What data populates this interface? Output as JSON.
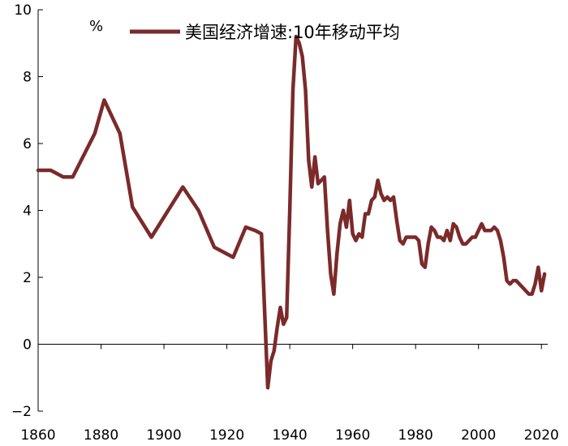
{
  "chart_data": {
    "type": "line",
    "title": "",
    "xlabel": "",
    "ylabel": "%",
    "xlim": [
      1860,
      2022
    ],
    "ylim": [
      -2,
      10
    ],
    "x_ticks": [
      1860,
      1880,
      1900,
      1920,
      1940,
      1960,
      1980,
      2000,
      2020
    ],
    "y_ticks": [
      -2,
      0,
      2,
      4,
      6,
      8,
      10
    ],
    "y_tick_labels": [
      "−2",
      "0",
      "2",
      "4",
      "6",
      "8",
      "10"
    ],
    "grid": false,
    "legend": "top-center",
    "series": [
      {
        "name": "美国经济增速:10年移动平均",
        "color": "#7b2a2a",
        "x": [
          1860,
          1864,
          1868,
          1871,
          1878,
          1881,
          1886,
          1890,
          1896,
          1900,
          1906,
          1911,
          1916,
          1920,
          1922,
          1926,
          1929,
          1931,
          1933,
          1934,
          1935,
          1936,
          1937,
          1938,
          1939,
          1940,
          1941,
          1942,
          1943,
          1944,
          1945,
          1946,
          1947,
          1948,
          1949,
          1950,
          1951,
          1952,
          1953,
          1954,
          1955,
          1956,
          1957,
          1958,
          1959,
          1960,
          1961,
          1962,
          1963,
          1964,
          1965,
          1966,
          1967,
          1968,
          1969,
          1970,
          1971,
          1972,
          1973,
          1974,
          1975,
          1976,
          1977,
          1978,
          1979,
          1980,
          1981,
          1982,
          1983,
          1984,
          1985,
          1986,
          1987,
          1988,
          1989,
          1990,
          1991,
          1992,
          1993,
          1994,
          1995,
          1996,
          1997,
          1998,
          1999,
          2000,
          2001,
          2002,
          2003,
          2004,
          2005,
          2006,
          2007,
          2008,
          2009,
          2010,
          2011,
          2012,
          2013,
          2014,
          2015,
          2016,
          2017,
          2018,
          2019,
          2020,
          2021
        ],
        "values": [
          5.2,
          5.2,
          5.0,
          5.0,
          6.3,
          7.3,
          6.3,
          4.1,
          3.2,
          3.8,
          4.7,
          4.0,
          2.9,
          2.7,
          2.6,
          3.5,
          3.4,
          3.3,
          -1.3,
          -0.5,
          -0.2,
          0.5,
          1.1,
          0.6,
          0.8,
          4.0,
          7.6,
          9.2,
          9.0,
          8.6,
          7.6,
          5.5,
          4.7,
          5.6,
          4.8,
          4.9,
          5.0,
          3.4,
          2.1,
          1.5,
          2.7,
          3.6,
          4.0,
          3.5,
          4.3,
          3.3,
          3.1,
          3.3,
          3.2,
          3.9,
          3.9,
          4.3,
          4.4,
          4.9,
          4.5,
          4.3,
          4.4,
          4.3,
          4.4,
          3.7,
          3.1,
          3.0,
          3.2,
          3.2,
          3.2,
          3.2,
          3.1,
          2.4,
          2.3,
          3.0,
          3.5,
          3.4,
          3.2,
          3.2,
          3.1,
          3.4,
          3.1,
          3.6,
          3.5,
          3.2,
          3.0,
          3.0,
          3.1,
          3.2,
          3.2,
          3.4,
          3.6,
          3.4,
          3.4,
          3.4,
          3.5,
          3.4,
          3.1,
          2.6,
          1.9,
          1.8,
          1.9,
          1.9,
          1.8,
          1.7,
          1.6,
          1.5,
          1.5,
          1.8,
          2.3,
          1.6,
          2.1
        ]
      }
    ]
  }
}
